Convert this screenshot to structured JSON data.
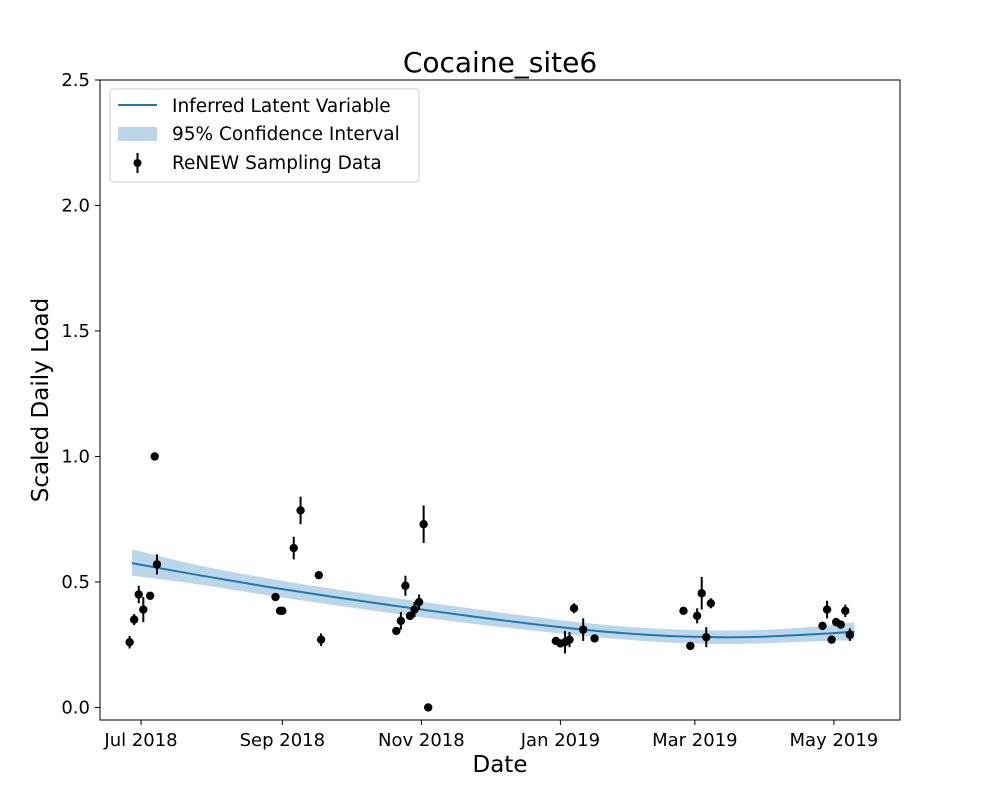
{
  "chart_data": {
    "type": "scatter",
    "title": "Cocaine_site6",
    "xlabel": "Date",
    "ylabel": "Scaled Daily Load",
    "xlim": [
      "2018-06-13",
      "2019-05-30"
    ],
    "ylim": [
      -0.05,
      2.5
    ],
    "x_ticks": [
      "2018-07-01",
      "2018-09-01",
      "2018-11-01",
      "2019-01-01",
      "2019-03-01",
      "2019-05-01"
    ],
    "x_tick_labels": [
      "Jul 2018",
      "Sep 2018",
      "Nov 2018",
      "Jan 2019",
      "Mar 2019",
      "May 2019"
    ],
    "y_ticks": [
      0.0,
      0.5,
      1.0,
      1.5,
      2.0,
      2.5
    ],
    "y_tick_labels": [
      "0.0",
      "0.5",
      "1.0",
      "1.5",
      "2.0",
      "2.5"
    ],
    "grid": false,
    "legend": {
      "placement": "upper-left",
      "entries": [
        "Inferred Latent Variable",
        "95% Confidence Interval",
        "ReNEW Sampling Data"
      ]
    },
    "colors": {
      "line": "#1f77b4",
      "band": "#1f77b4",
      "points": "#000000"
    },
    "series": [
      {
        "name": "Inferred Latent Variable",
        "kind": "line",
        "x": [
          "2018-06-27",
          "2018-07-27",
          "2018-08-26",
          "2018-09-25",
          "2018-10-25",
          "2018-11-24",
          "2018-12-24",
          "2019-01-23",
          "2019-02-22",
          "2019-03-24",
          "2019-04-23",
          "2019-05-10"
        ],
        "y": [
          0.575,
          0.526,
          0.48,
          0.438,
          0.399,
          0.362,
          0.328,
          0.3,
          0.283,
          0.28,
          0.292,
          0.302
        ]
      },
      {
        "name": "95% Confidence Interval",
        "kind": "band",
        "x": [
          "2018-06-27",
          "2018-07-27",
          "2018-08-26",
          "2018-09-25",
          "2018-10-25",
          "2018-11-24",
          "2018-12-24",
          "2019-01-23",
          "2019-02-22",
          "2019-03-24",
          "2019-04-23",
          "2019-05-10"
        ],
        "lower": [
          0.525,
          0.489,
          0.446,
          0.406,
          0.368,
          0.333,
          0.302,
          0.275,
          0.257,
          0.254,
          0.264,
          0.268
        ],
        "upper": [
          0.63,
          0.565,
          0.514,
          0.47,
          0.43,
          0.393,
          0.357,
          0.327,
          0.31,
          0.307,
          0.322,
          0.34
        ]
      },
      {
        "name": "ReNEW Sampling Data",
        "kind": "errorbar",
        "x": [
          "2018-06-26",
          "2018-06-28",
          "2018-06-30",
          "2018-07-02",
          "2018-07-05",
          "2018-07-07",
          "2018-07-08",
          "2018-08-29",
          "2018-08-31",
          "2018-09-01",
          "2018-09-06",
          "2018-09-09",
          "2018-09-17",
          "2018-09-18",
          "2018-10-21",
          "2018-10-23",
          "2018-10-25",
          "2018-10-27",
          "2018-10-29",
          "2018-10-31",
          "2018-11-02",
          "2018-11-04",
          "2018-12-30",
          "2019-01-01",
          "2019-01-03",
          "2019-01-05",
          "2019-01-07",
          "2019-01-11",
          "2019-01-16",
          "2019-02-24",
          "2019-02-27",
          "2019-03-02",
          "2019-03-04",
          "2019-03-06",
          "2019-03-08",
          "2019-04-26",
          "2019-04-28",
          "2019-04-30",
          "2019-05-02",
          "2019-05-04",
          "2019-05-06",
          "2019-05-08"
        ],
        "y": [
          0.26,
          0.35,
          0.45,
          0.39,
          0.445,
          1.0,
          0.57,
          0.44,
          0.385,
          0.385,
          0.635,
          0.785,
          0.527,
          0.27,
          0.305,
          0.345,
          0.485,
          0.365,
          0.39,
          0.42,
          0.73,
          0.0,
          0.265,
          0.255,
          0.26,
          0.27,
          0.395,
          0.31,
          0.275,
          0.385,
          0.245,
          0.365,
          0.455,
          0.28,
          0.415,
          0.325,
          0.39,
          0.27,
          0.34,
          0.33,
          0.385,
          0.29
        ],
        "err": [
          0.025,
          0.022,
          0.035,
          0.05,
          0.0,
          0.0,
          0.04,
          0.0,
          0.015,
          0.0,
          0.045,
          0.055,
          0.0,
          0.025,
          0.0,
          0.035,
          0.04,
          0.0,
          0.03,
          0.03,
          0.075,
          0.0,
          0.0,
          0.0,
          0.045,
          0.03,
          0.02,
          0.045,
          0.0,
          0.0,
          0.0,
          0.03,
          0.065,
          0.04,
          0.02,
          0.0,
          0.035,
          0.0,
          0.0,
          0.0,
          0.025,
          0.025
        ]
      }
    ]
  }
}
